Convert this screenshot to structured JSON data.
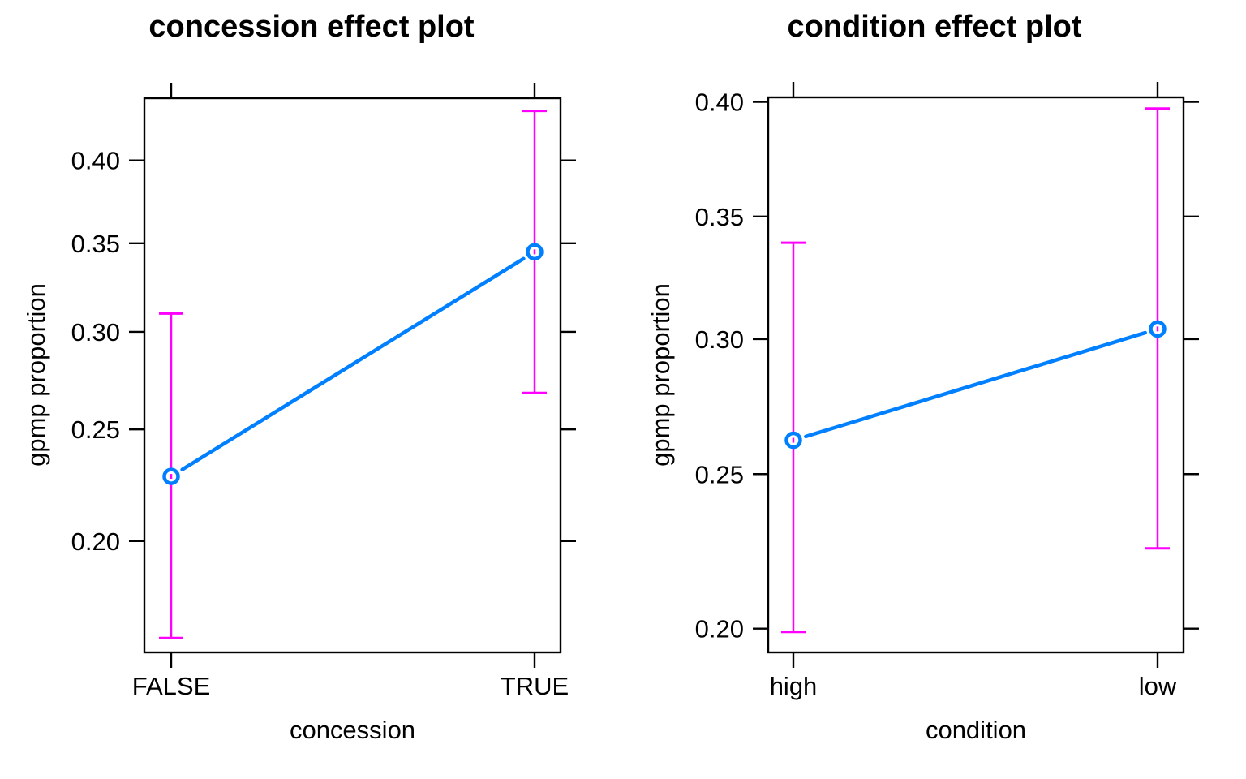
{
  "colors": {
    "fit_line": "#0080FF",
    "error_bar": "#FF00FF",
    "axis": "#000000",
    "text": "#000000",
    "background": "#FFFFFF"
  },
  "chart_data": [
    {
      "type": "line",
      "title": "concession effect plot",
      "xlabel": "concession",
      "ylabel": "gpmp proportion",
      "y_scale": "logit",
      "grid": false,
      "legend": "none",
      "categories": [
        "FALSE",
        "TRUE"
      ],
      "points": [
        {
          "category": "FALSE",
          "fit": 0.228,
          "lower": 0.163,
          "upper": 0.31
        },
        {
          "category": "TRUE",
          "fit": 0.345,
          "lower": 0.268,
          "upper": 0.431
        }
      ],
      "yticks": [
        0.4,
        0.35,
        0.3,
        0.25,
        0.2
      ],
      "ytick_labels": [
        "0.40",
        "0.35",
        "0.30",
        "0.25",
        "0.20"
      ],
      "ylim": [
        0.158,
        0.439
      ]
    },
    {
      "type": "line",
      "title": "condition effect plot",
      "xlabel": "condition",
      "ylabel": "gpmp proportion",
      "y_scale": "logit",
      "grid": false,
      "legend": "none",
      "categories": [
        "high",
        "low"
      ],
      "points": [
        {
          "category": "high",
          "fit": 0.262,
          "lower": 0.199,
          "upper": 0.339
        },
        {
          "category": "low",
          "fit": 0.304,
          "lower": 0.225,
          "upper": 0.397
        }
      ],
      "yticks": [
        0.4,
        0.35,
        0.3,
        0.25,
        0.2
      ],
      "ytick_labels": [
        "0.40",
        "0.35",
        "0.30",
        "0.25",
        "0.20"
      ],
      "ylim": [
        0.193,
        0.402
      ]
    }
  ]
}
